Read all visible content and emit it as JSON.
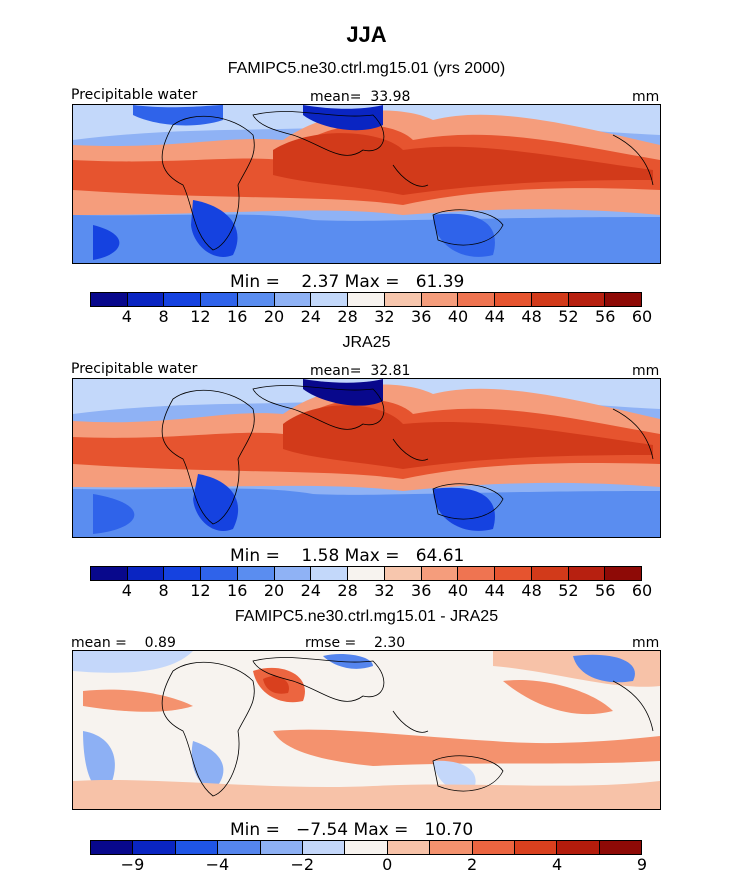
{
  "figure": {
    "title": "JJA",
    "colors_abs": [
      "#08088c",
      "#0a25c2",
      "#1542e0",
      "#2f63ea",
      "#5a8df0",
      "#8fb2f5",
      "#c3d8fa",
      "#f7f3ef",
      "#f7c6ad",
      "#f59d7c",
      "#ef7451",
      "#e6542f",
      "#d23a1a",
      "#b72010",
      "#8e0a06"
    ],
    "colors_diff": [
      "#08088c",
      "#0a25c2",
      "#1f55e6",
      "#5585ee",
      "#8db0f4",
      "#c4d7fa",
      "#f7f3ef",
      "#f7c2a8",
      "#f4926e",
      "#ec6540",
      "#d9401e",
      "#b31c0c",
      "#8e0a06"
    ]
  },
  "panels": [
    {
      "id": "model",
      "subtitle": "FAMIPC5.ne30.ctrl.mg15.01 (yrs 2000)",
      "left_label": "Precipitable water",
      "center_label": "mean=  33.98",
      "units": "mm",
      "stats": "Min =    2.37 Max =   61.39",
      "colorbar_ticks": [
        "4",
        "8",
        "12",
        "16",
        "20",
        "24",
        "28",
        "32",
        "36",
        "40",
        "44",
        "48",
        "52",
        "56",
        "60"
      ]
    },
    {
      "id": "obs",
      "subtitle": "JRA25",
      "left_label": "Precipitable water",
      "center_label": "mean=  32.81",
      "units": "mm",
      "stats": "Min =    1.58 Max =   64.61",
      "colorbar_ticks": [
        "4",
        "8",
        "12",
        "16",
        "20",
        "24",
        "28",
        "32",
        "36",
        "40",
        "44",
        "48",
        "52",
        "56",
        "60"
      ]
    },
    {
      "id": "diff",
      "subtitle": "FAMIPC5.ne30.ctrl.mg15.01 - JRA25",
      "left_label": "mean =    0.89",
      "center_label": "rmse =    2.30",
      "units": "mm",
      "stats": "Min =   −7.54 Max =   10.70",
      "colorbar_ticks": [
        "−9",
        "−4",
        "−2",
        "0",
        "2",
        "4",
        "9"
      ]
    }
  ],
  "chart_data": [
    {
      "type": "heatmap",
      "title": "Precipitable water",
      "subtitle": "FAMIPC5.ne30.ctrl.mg15.01 (yrs 2000)",
      "units": "mm",
      "mean": 33.98,
      "min": 2.37,
      "max": 61.39,
      "levels": [
        4,
        8,
        12,
        16,
        20,
        24,
        28,
        32,
        36,
        40,
        44,
        48,
        52,
        56,
        60
      ]
    },
    {
      "type": "heatmap",
      "title": "Precipitable water",
      "subtitle": "JRA25",
      "units": "mm",
      "mean": 32.81,
      "min": 1.58,
      "max": 64.61,
      "levels": [
        4,
        8,
        12,
        16,
        20,
        24,
        28,
        32,
        36,
        40,
        44,
        48,
        52,
        56,
        60
      ]
    },
    {
      "type": "heatmap",
      "title": "FAMIPC5.ne30.ctrl.mg15.01 - JRA25",
      "units": "mm",
      "mean": 0.89,
      "rmse": 2.3,
      "min": -7.54,
      "max": 10.7,
      "levels": [
        -9,
        -4,
        -2,
        0,
        2,
        4,
        9
      ]
    }
  ]
}
